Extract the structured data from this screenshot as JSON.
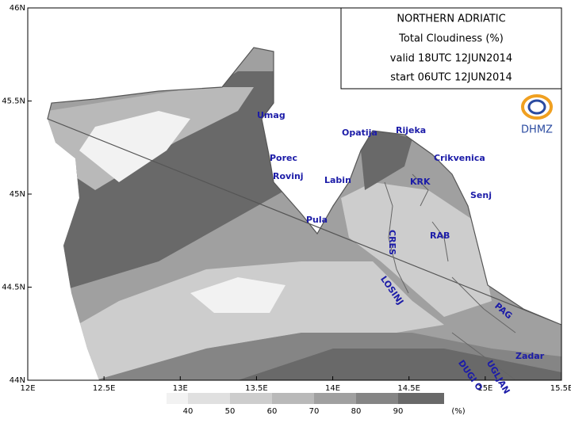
{
  "title_box": {
    "lines": [
      "NORTHERN ADRIATIC",
      "Total Cloudiness (%)",
      "valid 18UTC 12JUN2014",
      "start 06UTC 12JUN2014"
    ]
  },
  "logo": "DHMZ",
  "map": {
    "xlim": [
      12,
      15.5
    ],
    "ylim": [
      44,
      46
    ],
    "xticks": [
      {
        "value": 12,
        "label": "12E"
      },
      {
        "value": 12.5,
        "label": "12.5E"
      },
      {
        "value": 13,
        "label": "13E"
      },
      {
        "value": 13.5,
        "label": "13.5E"
      },
      {
        "value": 14,
        "label": "14E"
      },
      {
        "value": 14.5,
        "label": "14.5E"
      },
      {
        "value": 15,
        "label": "15E"
      },
      {
        "value": 15.5,
        "label": "15.5E"
      }
    ],
    "yticks": [
      {
        "value": 44,
        "label": "44N"
      },
      {
        "value": 44.5,
        "label": "44.5N"
      },
      {
        "value": 45,
        "label": "45N"
      },
      {
        "value": 45.5,
        "label": "45.5N"
      },
      {
        "value": 46,
        "label": "46N"
      }
    ],
    "places": [
      "Umag",
      "Porec",
      "Rovinj",
      "Pula",
      "Labin",
      "Opatija",
      "Rijeka",
      "Crikvenica",
      "KRK",
      "Senj",
      "CRES",
      "RAB",
      "LOSINJ",
      "PAG",
      "Zadar",
      "UGLJAN",
      "DUGI O"
    ]
  },
  "legend": {
    "levels": [
      40,
      50,
      60,
      70,
      80,
      90
    ],
    "colors": [
      "#f2f2f2",
      "#e0e0e0",
      "#cdcdcd",
      "#b9b9b9",
      "#a0a0a0",
      "#858585",
      "#696969"
    ],
    "unit": "(%)"
  }
}
